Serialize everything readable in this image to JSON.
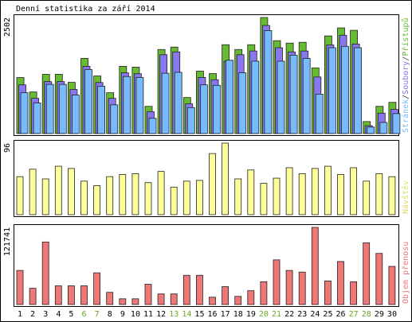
{
  "chart_data": [
    {
      "type": "bar",
      "title": "Denní statistika za září 2014",
      "legend_separator": "/",
      "ylim": [
        0,
        2502
      ],
      "yticks": [
        2502
      ],
      "series": [
        {
          "name": "Přístupů",
          "color": "#66bb33",
          "values": [
            1208,
            897,
            1277,
            1277,
            1104,
            1622,
            1242,
            880,
            1450,
            1432,
            587,
            1812,
            1864,
            777,
            1346,
            1294,
            1915,
            1812,
            1915,
            2502,
            2002,
            1950,
            1967,
            1415,
            2105,
            2278,
            2226,
            259,
            587,
            673
          ]
        },
        {
          "name": "Soubory",
          "color": "#8877ee",
          "values": [
            1050,
            760,
            1120,
            1120,
            950,
            1450,
            1100,
            760,
            1310,
            1290,
            470,
            1700,
            1760,
            640,
            1210,
            1160,
            1560,
            1700,
            1780,
            2330,
            1850,
            1760,
            1780,
            1220,
            1910,
            2120,
            1930,
            170,
            440,
            520
          ]
        },
        {
          "name": "Stránek",
          "color": "#77bbff",
          "values": [
            880,
            660,
            1060,
            1060,
            830,
            1380,
            1020,
            620,
            1230,
            1210,
            330,
            1300,
            1320,
            560,
            1050,
            1040,
            1580,
            1310,
            1560,
            2220,
            1560,
            1690,
            1620,
            850,
            1850,
            1880,
            1850,
            140,
            240,
            430
          ]
        }
      ]
    },
    {
      "type": "bar",
      "ylim": [
        0,
        96
      ],
      "yticks": [
        96
      ],
      "series": [
        {
          "name": "Návštěv",
          "color": "#ffff99",
          "legend_color": "#dddd66",
          "values": [
            51,
            61,
            48,
            65,
            62,
            45,
            39,
            51,
            54,
            55,
            43,
            58,
            37,
            45,
            46,
            82,
            96,
            48,
            60,
            42,
            49,
            63,
            55,
            62,
            65,
            54,
            63,
            45,
            55,
            51
          ]
        }
      ]
    },
    {
      "type": "bar",
      "ylim": [
        0,
        121741
      ],
      "yticks": [
        121741
      ],
      "series": [
        {
          "name": "Objem přenosu",
          "color": "#ee7777",
          "values": [
            53800,
            25600,
            98700,
            29500,
            29500,
            29500,
            50000,
            19200,
            9000,
            9000,
            32000,
            16700,
            16700,
            46100,
            46100,
            11500,
            28200,
            12800,
            21800,
            35900,
            70500,
            53800,
            51200,
            121741,
            37200,
            67900,
            35900,
            97400,
            80700,
            60200
          ]
        }
      ],
      "categories": [
        "1",
        "2",
        "3",
        "4",
        "5",
        "6",
        "7",
        "8",
        "9",
        "10",
        "11",
        "12",
        "13",
        "14",
        "15",
        "16",
        "17",
        "18",
        "19",
        "20",
        "21",
        "22",
        "23",
        "24",
        "25",
        "26",
        "27",
        "28",
        "29",
        "30"
      ],
      "category_colors": [
        "#000",
        "#000",
        "#000",
        "#000",
        "#000",
        "#66aa22",
        "#66aa22",
        "#000",
        "#000",
        "#000",
        "#000",
        "#000",
        "#66aa22",
        "#66aa22",
        "#000",
        "#000",
        "#000",
        "#000",
        "#000",
        "#66aa22",
        "#66aa22",
        "#000",
        "#000",
        "#000",
        "#000",
        "#000",
        "#66aa22",
        "#66aa22",
        "#000",
        "#000"
      ]
    }
  ]
}
